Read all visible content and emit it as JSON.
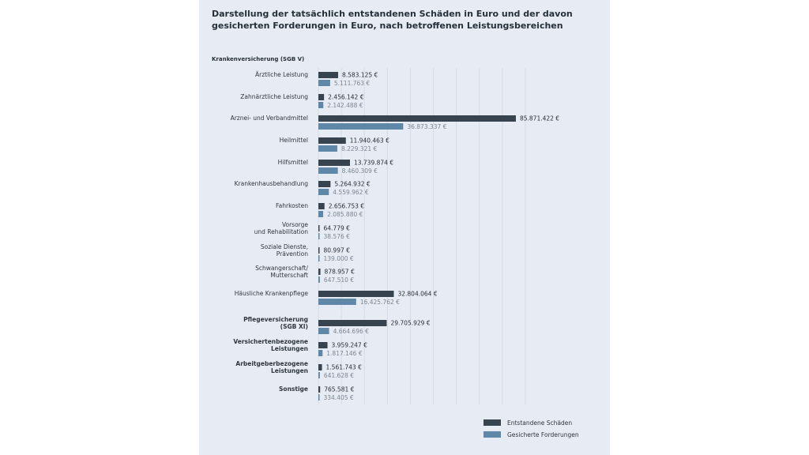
{
  "title": "Darstellung der tatsächlich entstandenen Schäden in Euro und der davon gesicherten Forderungen in Euro, nach betroffenen Leistungsbereichen",
  "section_label": "Krankenversicherung (SGB V)",
  "colors": {
    "dark": "#37444f",
    "light": "#5f88a8",
    "panel": "#e7ebf3"
  },
  "chart_data": {
    "type": "bar",
    "orientation": "horizontal",
    "categories": [
      [
        "Ärztliche Leistung"
      ],
      [
        "Zahnärztliche Leistung"
      ],
      [
        "Arznei- und Verbandmittel"
      ],
      [
        "Heilmittel"
      ],
      [
        "Hilfsmittel"
      ],
      [
        "Krankenhausbehandlung"
      ],
      [
        "Fahrkosten"
      ],
      [
        "Vorsorge",
        "und Rehabilitation"
      ],
      [
        "Soziale Dienste,",
        "Prävention"
      ],
      [
        "Schwangerschaft/",
        "Mutterschaft"
      ],
      [
        "Häusliche Krankenpflege"
      ],
      [
        "Pflegeversicherung",
        "(SGB XI)"
      ],
      [
        "Versichertenbezogene",
        "Leistungen"
      ],
      [
        "Arbeitgeberbezogene",
        "Leistungen"
      ],
      [
        "Sonstige"
      ]
    ],
    "bold": [
      false,
      false,
      false,
      false,
      false,
      false,
      false,
      false,
      false,
      false,
      false,
      true,
      true,
      true,
      true
    ],
    "series": [
      {
        "name": "Entstandene Schäden",
        "values": [
          8583125,
          2456142,
          85871422,
          11940463,
          13739874,
          5264932,
          2656753,
          64779,
          80997,
          878957,
          32804064,
          29705929,
          3959247,
          1561743,
          765581
        ],
        "labels": [
          "8.583.125 €",
          "2.456.142 €",
          "85.871.422 €",
          "11.940.463 €",
          "13.739.874 €",
          "5.264.932 €",
          "2.656.753 €",
          "64.779 €",
          "80.997 €",
          "878.957 €",
          "32.804.064 €",
          "29.705.929 €",
          "3.959.247 €",
          "1.561.743 €",
          "765.581 €"
        ]
      },
      {
        "name": "Gesicherte Forderungen",
        "values": [
          5111763,
          2142488,
          36873337,
          8229321,
          8460309,
          4559962,
          2085880,
          38576,
          139000,
          647510,
          16425762,
          4664696,
          1817146,
          641628,
          334405
        ],
        "labels": [
          "5.111.763 €",
          "2.142.488 €",
          "36.873.337 €",
          "8.229.321 €",
          "8.460.309 €",
          "4.559.962 €",
          "2.085.880 €",
          "38.576 €",
          "139.000 €",
          "647.510 €",
          "16.425.762 €",
          "4.664.696 €",
          "1.817.146 €",
          "641.628 €",
          "334.405 €"
        ]
      }
    ],
    "xlim": [
      0,
      90000000
    ],
    "grid": true,
    "legend_position": "bottom-right"
  }
}
